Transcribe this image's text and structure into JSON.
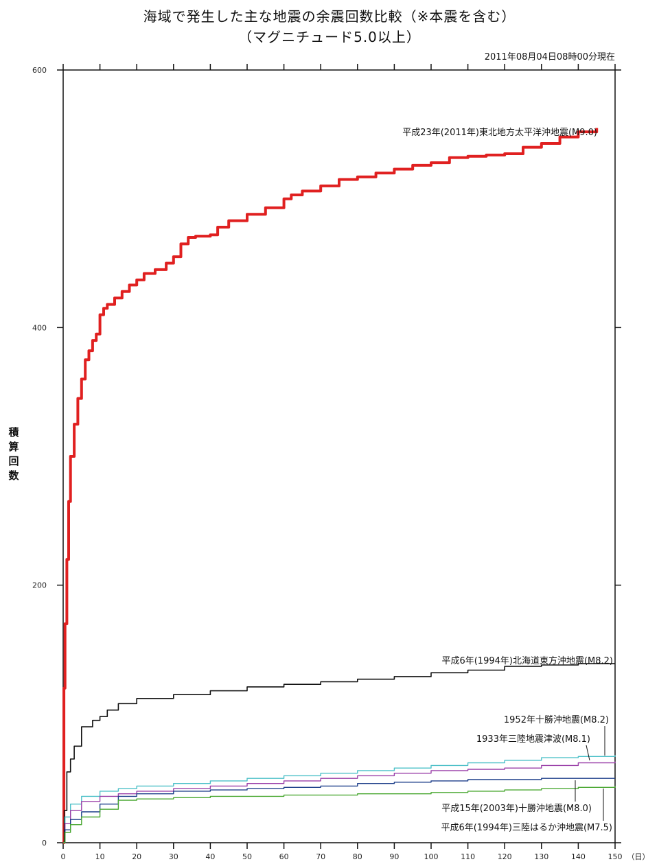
{
  "chart_data": {
    "type": "line",
    "title": "海域で発生した主な地震の余震回数比較（※本震を含む）",
    "subtitle": "（マグニチュード5.0以上）",
    "as_of": "2011年08月04日08時00分現在",
    "ylabel_chars": [
      "積",
      "算",
      "回",
      "数"
    ],
    "xunit": "（日）",
    "xlim": [
      0,
      150
    ],
    "ylim": [
      0,
      600
    ],
    "xticks": [
      0,
      10,
      20,
      30,
      40,
      50,
      60,
      70,
      80,
      90,
      100,
      110,
      120,
      130,
      140,
      150
    ],
    "yticks": [
      0,
      200,
      400,
      600
    ],
    "series": [
      {
        "name": "平成23年(2011年)東北地方太平洋沖地震(M9.0)",
        "color": "#e02020",
        "x": [
          0,
          0.2,
          0.5,
          1,
          1.5,
          2,
          3,
          4,
          5,
          6,
          7,
          8,
          9,
          10,
          11,
          12,
          14,
          16,
          18,
          20,
          22,
          25,
          28,
          30,
          32,
          34,
          36,
          40,
          42,
          45,
          50,
          55,
          60,
          62,
          65,
          70,
          75,
          80,
          85,
          90,
          95,
          100,
          105,
          110,
          115,
          120,
          125,
          130,
          135,
          140,
          145
        ],
        "y": [
          0,
          120,
          170,
          220,
          265,
          300,
          325,
          345,
          360,
          375,
          382,
          390,
          395,
          410,
          415,
          418,
          423,
          428,
          433,
          437,
          442,
          445,
          450,
          455,
          465,
          470,
          471,
          472,
          478,
          483,
          488,
          493,
          500,
          503,
          506,
          510,
          515,
          517,
          520,
          523,
          526,
          528,
          532,
          533,
          534,
          535,
          540,
          543,
          548,
          552,
          555
        ]
      },
      {
        "name": "平成6年(1994年)北海道東方沖地震(M8.2)",
        "color": "#111111",
        "x": [
          0,
          0.3,
          1,
          2,
          3,
          5,
          8,
          10,
          12,
          15,
          20,
          30,
          40,
          50,
          60,
          70,
          80,
          90,
          100,
          110,
          120,
          130,
          140,
          150
        ],
        "y": [
          0,
          25,
          55,
          65,
          75,
          90,
          95,
          98,
          103,
          108,
          112,
          115,
          118,
          121,
          123,
          125,
          127,
          129,
          132,
          134,
          137,
          138,
          139,
          139
        ]
      },
      {
        "name": "1952年十勝沖地震(M8.2)",
        "color": "#4cc0c8",
        "x": [
          0,
          0.5,
          2,
          5,
          10,
          15,
          20,
          30,
          40,
          50,
          60,
          70,
          80,
          90,
          100,
          110,
          120,
          130,
          140,
          150
        ],
        "y": [
          0,
          20,
          30,
          36,
          40,
          42,
          44,
          46,
          48,
          50,
          52,
          54,
          56,
          58,
          60,
          62,
          64,
          66,
          67,
          68
        ]
      },
      {
        "name": "1933年三陸地震津波(M8.1)",
        "color": "#9a3fa8",
        "x": [
          0,
          0.5,
          2,
          5,
          10,
          15,
          20,
          30,
          40,
          50,
          60,
          70,
          80,
          90,
          100,
          110,
          120,
          130,
          140,
          150
        ],
        "y": [
          0,
          15,
          25,
          32,
          36,
          38,
          40,
          42,
          44,
          46,
          48,
          50,
          52,
          54,
          56,
          57,
          58,
          60,
          62,
          63
        ]
      },
      {
        "name": "平成15年(2003年)十勝沖地震(M8.0)",
        "color": "#1d3f8a",
        "x": [
          0,
          0.5,
          2,
          5,
          10,
          15,
          20,
          30,
          40,
          50,
          60,
          70,
          80,
          90,
          100,
          110,
          120,
          130,
          140,
          150
        ],
        "y": [
          0,
          10,
          18,
          24,
          30,
          36,
          38,
          40,
          41,
          42,
          43,
          44,
          46,
          47,
          48,
          49,
          49,
          50,
          50,
          50
        ]
      },
      {
        "name": "平成6年(1994年)三陸はるか沖地震(M7.5)",
        "color": "#4aa832",
        "x": [
          0,
          0.5,
          2,
          5,
          10,
          15,
          20,
          30,
          40,
          50,
          60,
          70,
          80,
          90,
          100,
          110,
          120,
          130,
          140,
          150
        ],
        "y": [
          0,
          8,
          14,
          20,
          26,
          33,
          34,
          35,
          36,
          36,
          37,
          37,
          38,
          38,
          39,
          40,
          41,
          42,
          43,
          44
        ]
      }
    ]
  }
}
